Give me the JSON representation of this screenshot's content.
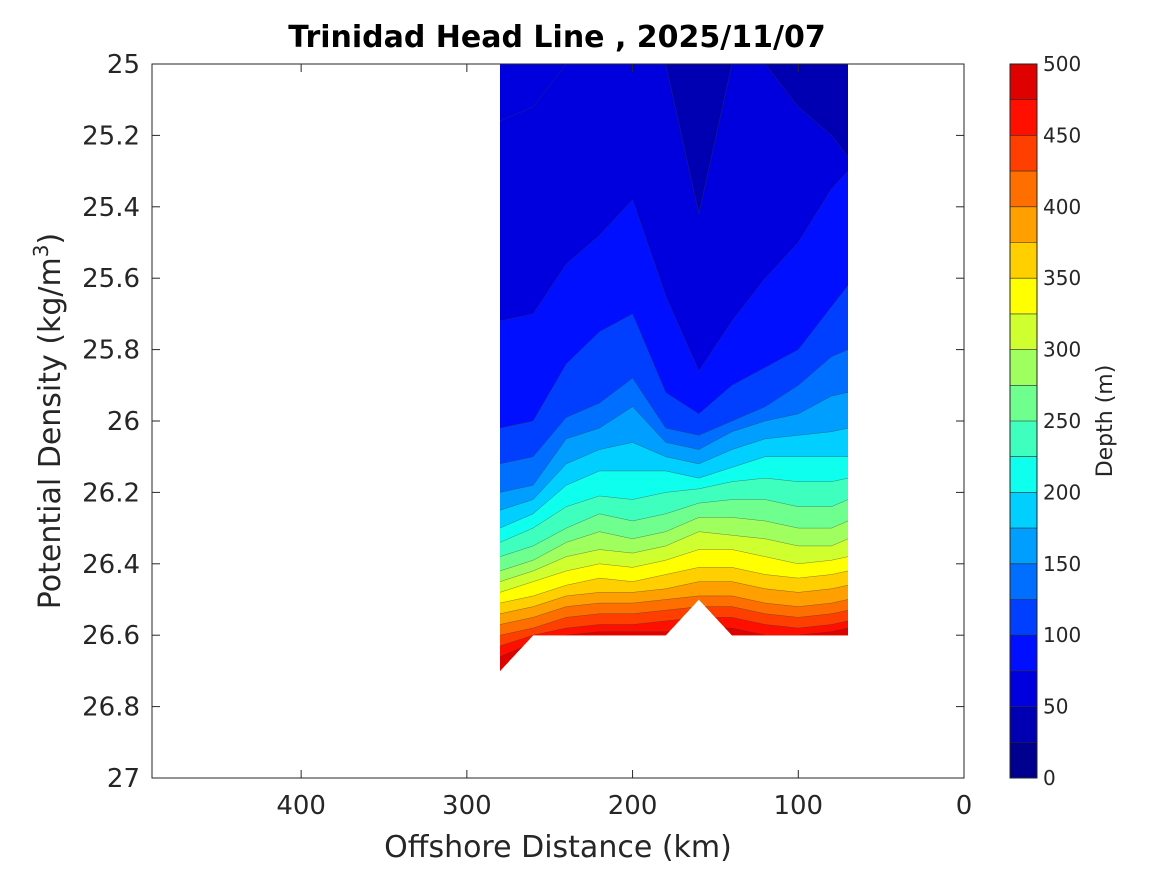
{
  "chart_data": {
    "type": "filled-contour",
    "title": "Trinidad Head Line , 2025/11/07",
    "xlabel": "Offshore Distance (km)",
    "ylabel_main": "Potential Density (kg/m",
    "ylabel_sup": "3",
    "ylabel_close": ")",
    "xlim": [
      490,
      0
    ],
    "ylim": [
      25,
      27
    ],
    "x_reversed": true,
    "y_reversed": true,
    "xticks": [
      400,
      300,
      200,
      100,
      0
    ],
    "yticks": [
      25,
      25.2,
      25.4,
      25.6,
      25.8,
      26,
      26.2,
      26.4,
      26.6,
      26.8,
      27
    ],
    "ytick_labels": [
      "25",
      "25.2",
      "25.4",
      "25.6",
      "25.8",
      "26",
      "26.2",
      "26.4",
      "26.6",
      "26.8",
      "27"
    ],
    "colorbar": {
      "label": "Depth (m)",
      "range": [
        0,
        500
      ],
      "ticks": [
        0,
        50,
        100,
        150,
        200,
        250,
        300,
        350,
        400,
        450,
        500
      ],
      "levels": [
        0,
        25,
        50,
        75,
        100,
        125,
        150,
        175,
        200,
        225,
        250,
        275,
        300,
        325,
        350,
        375,
        400,
        425,
        450,
        475,
        500
      ],
      "colors": [
        "#00008f",
        "#0000b3",
        "#0000df",
        "#000fff",
        "#003fff",
        "#006fff",
        "#009fff",
        "#00cfff",
        "#0fffef",
        "#3fffbf",
        "#6fff8f",
        "#9fff5f",
        "#cfff2f",
        "#ffff00",
        "#ffcf00",
        "#ff9f00",
        "#ff6f00",
        "#ff3f00",
        "#ff0f00",
        "#df0000"
      ]
    },
    "stations_x": [
      280,
      260,
      240,
      220,
      200,
      180,
      160,
      140,
      120,
      100,
      80,
      70
    ],
    "bottom_density": [
      26.7,
      26.6,
      26.6,
      26.6,
      26.6,
      26.6,
      26.5,
      26.6,
      26.6,
      26.6,
      26.6,
      26.6
    ],
    "contours": [
      {
        "level": 25,
        "y": [
          25.16,
          25.12,
          25.0,
          25.0,
          25.0,
          25.0,
          25.0,
          25.0,
          25.0,
          25.0,
          25.0,
          25.0
        ]
      },
      {
        "level": 50,
        "y": [
          25.0,
          25.0,
          25.0,
          25.0,
          25.0,
          25.0,
          25.42,
          25.0,
          25.0,
          25.12,
          25.2,
          25.26
        ]
      },
      {
        "level": 75,
        "y": [
          25.72,
          25.7,
          25.56,
          25.48,
          25.38,
          25.65,
          25.86,
          25.72,
          25.6,
          25.5,
          25.35,
          25.3
        ]
      },
      {
        "level": 100,
        "y": [
          26.02,
          26.0,
          25.84,
          25.75,
          25.7,
          25.92,
          25.98,
          25.9,
          25.85,
          25.8,
          25.68,
          25.62
        ]
      },
      {
        "level": 125,
        "y": [
          26.12,
          26.1,
          25.99,
          25.95,
          25.88,
          26.02,
          26.04,
          26.0,
          25.96,
          25.9,
          25.82,
          25.8
        ]
      },
      {
        "level": 150,
        "y": [
          26.2,
          26.18,
          26.05,
          26.02,
          25.96,
          26.06,
          26.08,
          26.03,
          26.0,
          25.98,
          25.93,
          25.92
        ]
      },
      {
        "level": 175,
        "y": [
          26.25,
          26.22,
          26.12,
          26.08,
          26.06,
          26.1,
          26.12,
          26.08,
          26.05,
          26.04,
          26.03,
          26.02
        ]
      },
      {
        "level": 200,
        "y": [
          26.3,
          26.26,
          26.18,
          26.14,
          26.14,
          26.14,
          26.16,
          26.13,
          26.1,
          26.1,
          26.1,
          26.1
        ]
      },
      {
        "level": 225,
        "y": [
          26.34,
          26.3,
          26.24,
          26.21,
          26.22,
          26.2,
          26.19,
          26.17,
          26.16,
          26.17,
          26.17,
          26.16
        ]
      },
      {
        "level": 250,
        "y": [
          26.38,
          26.35,
          26.3,
          26.26,
          26.28,
          26.26,
          26.23,
          26.22,
          26.22,
          26.24,
          26.24,
          26.22
        ]
      },
      {
        "level": 275,
        "y": [
          26.42,
          26.39,
          26.34,
          26.31,
          26.33,
          26.31,
          26.27,
          26.27,
          26.28,
          26.3,
          26.3,
          26.28
        ]
      },
      {
        "level": 300,
        "y": [
          26.45,
          26.42,
          26.38,
          26.36,
          26.37,
          26.35,
          26.31,
          26.32,
          26.33,
          26.35,
          26.35,
          26.33
        ]
      },
      {
        "level": 325,
        "y": [
          26.48,
          26.45,
          26.42,
          26.4,
          26.41,
          26.39,
          26.36,
          26.36,
          26.38,
          26.4,
          26.39,
          26.38
        ]
      },
      {
        "level": 350,
        "y": [
          26.51,
          26.49,
          26.46,
          26.44,
          26.45,
          26.43,
          26.41,
          26.41,
          26.43,
          26.44,
          26.43,
          26.42
        ]
      },
      {
        "level": 375,
        "y": [
          26.54,
          26.52,
          26.49,
          26.48,
          26.48,
          26.47,
          26.45,
          26.45,
          26.47,
          26.48,
          26.47,
          26.46
        ]
      },
      {
        "level": 400,
        "y": [
          26.57,
          26.55,
          26.52,
          26.51,
          26.51,
          26.5,
          26.49,
          26.49,
          26.51,
          26.52,
          26.51,
          26.5
        ]
      },
      {
        "level": 425,
        "y": [
          26.6,
          26.58,
          26.55,
          26.54,
          26.54,
          26.53,
          26.52,
          26.52,
          26.54,
          26.55,
          26.54,
          26.53
        ]
      },
      {
        "level": 450,
        "y": [
          26.63,
          26.6,
          26.58,
          26.57,
          26.57,
          26.56,
          26.55,
          26.55,
          26.57,
          26.58,
          26.57,
          26.56
        ]
      },
      {
        "level": 475,
        "y": [
          26.66,
          26.62,
          26.6,
          26.59,
          26.59,
          26.59,
          26.58,
          26.58,
          26.6,
          26.6,
          26.59,
          26.58
        ]
      }
    ]
  }
}
